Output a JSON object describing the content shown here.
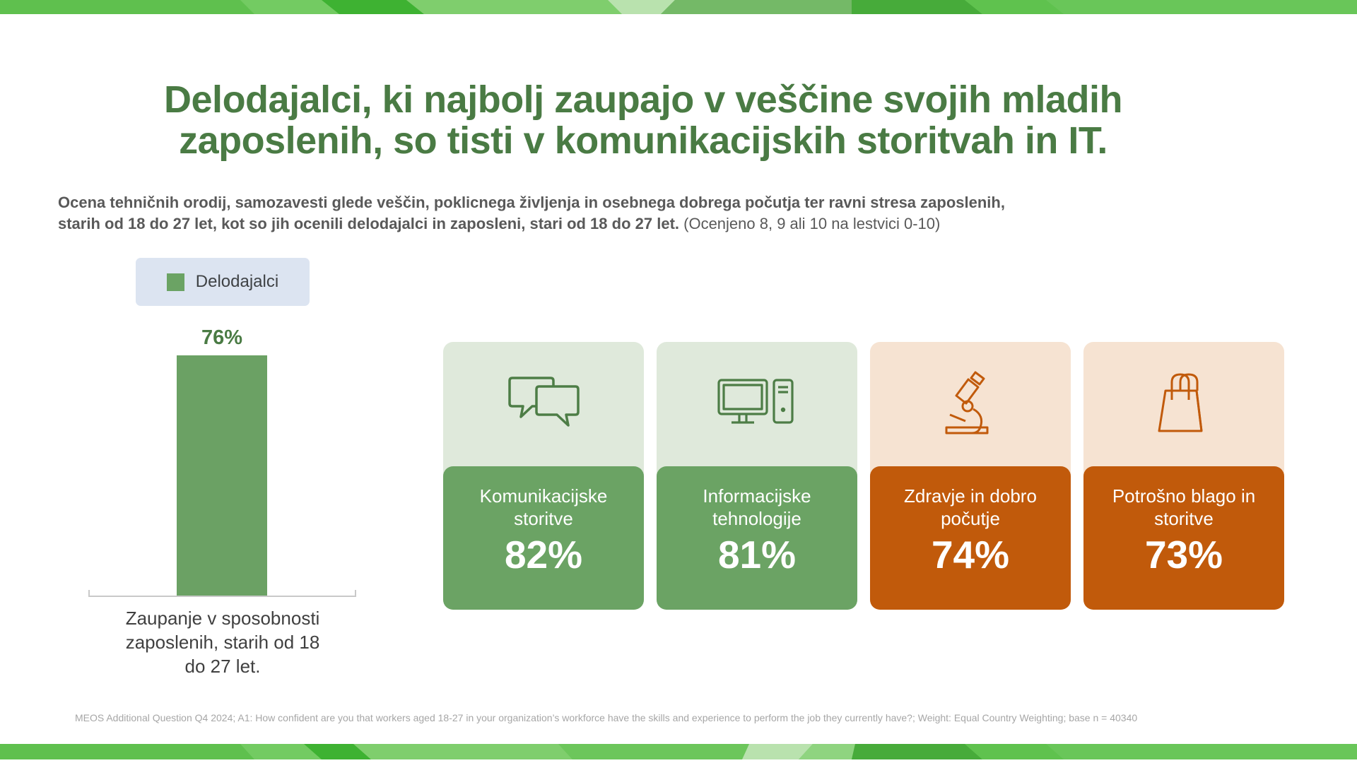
{
  "slide": {
    "title_lines": [
      "Delodajalci, ki najbolj zaupajo v veščine svojih mladih",
      "zaposlenih, so tisti v komunikacijskih storitvah in IT."
    ],
    "subtitle_line1": "Ocena tehničnih orodij, samozavesti glede veščin, poklicnega življenja in osebnega dobrega počutja ter ravni stresa zaposlenih,",
    "subtitle_line2_bold": "starih od 18 do 27 let, kot so jih ocenili delodajalci in zaposleni, stari od 18 do 27 let.",
    "subtitle_line2_note": " (Ocenjeno 8, 9 ali 10 na lestvici 0-10)",
    "footer": "MEOS Additional Question Q4 2024; A1: How confident are you that workers aged 18-27 in your organization’s workforce have the skills and experience to perform the job they currently have?; Weight: Equal Country Weighting; base n = 40340"
  },
  "legend": {
    "label": "Delodajalci",
    "swatch_color": "#6BA364"
  },
  "chart_data": {
    "type": "bar",
    "title": "",
    "categories": [
      "Zaupanje v sposobnosti zaposlenih, starih od 18 do 27 let."
    ],
    "category_lines": [
      "Zaupanje v sposobnosti",
      "zaposlenih, starih od 18",
      "do 27 let."
    ],
    "series": [
      {
        "name": "Delodajalci",
        "values": [
          76
        ]
      }
    ],
    "value_labels": [
      "76%"
    ],
    "ylim": [
      0,
      100
    ],
    "grid": false,
    "legend_position": "top-left",
    "bar_color": "#6BA164"
  },
  "cards": [
    {
      "label": "Komunikacijske storitve",
      "value": "82%",
      "icon": "chat-icon",
      "theme": "green"
    },
    {
      "label": "Informacijske tehnologije",
      "value": "81%",
      "icon": "computer-icon",
      "theme": "green"
    },
    {
      "label": "Zdravje in dobro počutje",
      "value": "74%",
      "icon": "microscope-icon",
      "theme": "orange"
    },
    {
      "label": "Potrošno blago in storitve",
      "value": "73%",
      "icon": "shopping-bag-icon",
      "theme": "orange"
    }
  ],
  "colors": {
    "title_green": "#4A7B44",
    "subtitle_gray": "#595959",
    "bar_green": "#6BA164",
    "card_green": "#6BA364",
    "card_green_light": "#DFE9DB",
    "card_orange": "#C15A0B",
    "card_orange_light": "#F6E3D2",
    "legend_bg": "#DCE4F1",
    "footer_gray": "#A6A6A6",
    "band_greens": [
      "#69C659",
      "#3EB232",
      "#7FCE6D",
      "#B9E2AE",
      "#74B967",
      "#47AB3A",
      "#5FC24E"
    ]
  }
}
